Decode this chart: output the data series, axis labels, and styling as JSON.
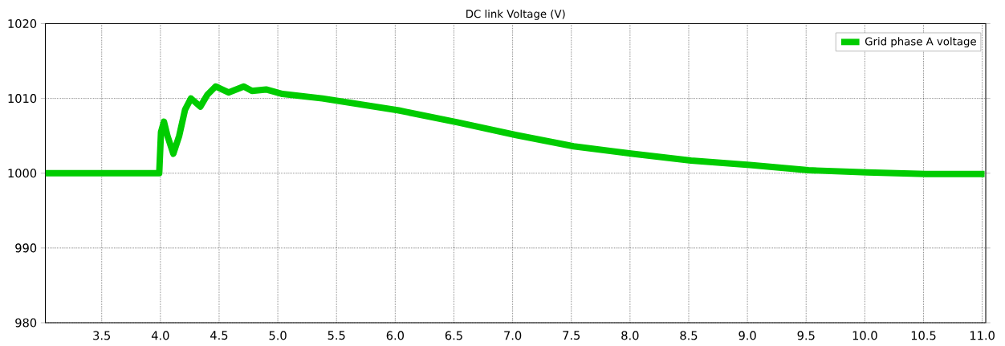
{
  "chart_data": {
    "type": "line",
    "title": "DC link Voltage (V)",
    "x": [
      3.02,
      3.5,
      3.99,
      4.005,
      4.03,
      4.06,
      4.11,
      4.16,
      4.21,
      4.26,
      4.34,
      4.4,
      4.47,
      4.58,
      4.71,
      4.78,
      4.9,
      5.04,
      5.38,
      6.03,
      6.53,
      7.03,
      7.52,
      8.02,
      8.52,
      9.02,
      9.52,
      10.02,
      10.52,
      11.02
    ],
    "series": [
      {
        "name": "Grid phase A voltage",
        "color": "#00cc00",
        "values": [
          1000.0,
          1000.0,
          1000.0,
          1005.5,
          1006.9,
          1005.0,
          1002.6,
          1005.0,
          1008.5,
          1010.0,
          1008.9,
          1010.5,
          1011.6,
          1010.8,
          1011.6,
          1011.0,
          1011.2,
          1010.6,
          1010.0,
          1008.4,
          1006.8,
          1005.1,
          1003.6,
          1002.6,
          1001.7,
          1001.1,
          1000.4,
          1000.1,
          999.9,
          999.9
        ]
      }
    ],
    "xlim": [
      3.02,
      11.03
    ],
    "ylim": [
      980,
      1020
    ],
    "xticks": [
      {
        "value": 3.5,
        "label": "3.5"
      },
      {
        "value": 4,
        "label": "4.0"
      },
      {
        "value": 4.5,
        "label": "4.5"
      },
      {
        "value": 5,
        "label": "5.0"
      },
      {
        "value": 5.5,
        "label": "5.5"
      },
      {
        "value": 6,
        "label": "6.0"
      },
      {
        "value": 6.5,
        "label": "6.5"
      },
      {
        "value": 7,
        "label": "7.0"
      },
      {
        "value": 7.5,
        "label": "7.5"
      },
      {
        "value": 8,
        "label": "8.0"
      },
      {
        "value": 8.5,
        "label": "8.5"
      },
      {
        "value": 9,
        "label": "9.0"
      },
      {
        "value": 9.5,
        "label": "9.5"
      },
      {
        "value": 10,
        "label": "10.0"
      },
      {
        "value": 10.5,
        "label": "10.5"
      },
      {
        "value": 11,
        "label": "11.0"
      }
    ],
    "yticks": [
      980,
      990,
      1000,
      1010,
      1020
    ],
    "grid": true,
    "legend": "top right",
    "line_style": "solid",
    "marker": "none"
  }
}
